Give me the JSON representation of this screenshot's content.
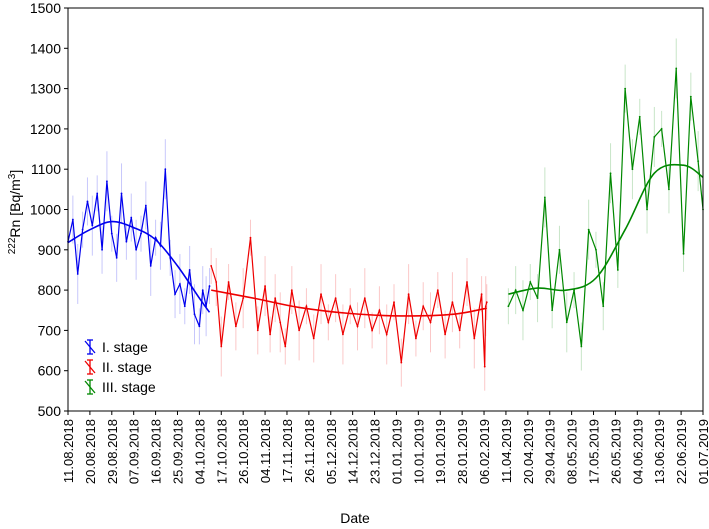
{
  "chart_data": {
    "type": "line",
    "xlabel": "Date",
    "ylabel_prefix": "222",
    "ylabel_main": "Rn [Bq/m",
    "ylabel_sup": "3",
    "ylabel_suffix": "]",
    "ylim": [
      500,
      1500
    ],
    "yticks": [
      500,
      600,
      700,
      800,
      900,
      1000,
      1100,
      1200,
      1300,
      1400,
      1500
    ],
    "xlim": [
      "2018-08-11",
      "2019-07-01"
    ],
    "xticks": [
      "11.08.2018",
      "20.08.2018",
      "29.08.2018",
      "07.09.2018",
      "16.09.2018",
      "25.09.2018",
      "04.10.2018",
      "17.10.2018",
      "26.10.2018",
      "04.11.2018",
      "17.11.2018",
      "26.11.2018",
      "05.12.2018",
      "14.12.2018",
      "23.12.2018",
      "01.01.2019",
      "10.01.2019",
      "19.01.2019",
      "28.01.2019",
      "06.02.2019",
      "11.04.2019",
      "20.04.2019",
      "29.04.2019",
      "08.05.2019",
      "17.05.2019",
      "26.05.2019",
      "04.06.2019",
      "13.06.2019",
      "22.06.2019",
      "01.07.2019"
    ],
    "grid": false,
    "legend_position": "bottom-left",
    "series": [
      {
        "name": "I. stage",
        "color": "#0000ee",
        "x": [
          "2018-08-11",
          "2018-08-13",
          "2018-08-15",
          "2018-08-17",
          "2018-08-19",
          "2018-08-21",
          "2018-08-23",
          "2018-08-25",
          "2018-08-27",
          "2018-08-29",
          "2018-08-31",
          "2018-09-02",
          "2018-09-04",
          "2018-09-06",
          "2018-09-08",
          "2018-09-10",
          "2018-09-12",
          "2018-09-14",
          "2018-09-16",
          "2018-09-18",
          "2018-09-20",
          "2018-09-22",
          "2018-09-24",
          "2018-09-26",
          "2018-09-28",
          "2018-09-30",
          "2018-10-02",
          "2018-10-04",
          "2018-10-06",
          "2018-10-08",
          "2018-10-10"
        ],
        "values": [
          920,
          975,
          840,
          950,
          1020,
          960,
          1040,
          900,
          1070,
          940,
          880,
          1040,
          920,
          980,
          900,
          940,
          1010,
          860,
          930,
          910,
          1100,
          880,
          790,
          815,
          760,
          850,
          740,
          710,
          800,
          760,
          810
        ],
        "trend_x": [
          "2018-08-11",
          "2018-08-20",
          "2018-08-29",
          "2018-09-07",
          "2018-09-16",
          "2018-09-25",
          "2018-10-04",
          "2018-10-10"
        ],
        "trend": [
          918,
          950,
          970,
          955,
          925,
          860,
          780,
          745
        ]
      },
      {
        "name": "II. stage",
        "color": "#ee0000",
        "x": [
          "2018-10-11",
          "2018-10-14",
          "2018-10-17",
          "2018-10-20",
          "2018-10-23",
          "2018-10-26",
          "2018-10-29",
          "2018-11-01",
          "2018-11-04",
          "2018-11-07",
          "2018-11-10",
          "2018-11-13",
          "2018-11-16",
          "2018-11-19",
          "2018-11-22",
          "2018-11-25",
          "2018-11-28",
          "2018-12-01",
          "2018-12-04",
          "2018-12-07",
          "2018-12-10",
          "2018-12-13",
          "2018-12-16",
          "2018-12-19",
          "2018-12-22",
          "2018-12-25",
          "2018-12-28",
          "2018-12-31",
          "2019-01-03",
          "2019-01-06",
          "2019-01-09",
          "2019-01-12",
          "2019-01-15",
          "2019-01-18",
          "2019-01-21",
          "2019-01-24",
          "2019-01-27",
          "2019-01-30",
          "2019-02-02",
          "2019-02-05",
          "2019-02-08",
          "2019-02-11",
          "2019-02-14"
        ],
        "values": [
          860,
          820,
          660,
          820,
          710,
          780,
          930,
          700,
          810,
          690,
          780,
          720,
          660,
          800,
          700,
          760,
          680,
          790,
          720,
          780,
          690,
          760,
          710,
          780,
          700,
          750,
          690,
          770,
          620,
          790,
          680,
          760,
          720,
          800,
          690,
          770,
          700,
          820,
          680,
          790,
          610,
          760,
          770
        ],
        "trend_x": [
          "2018-10-11",
          "2018-11-01",
          "2018-11-22",
          "2018-12-13",
          "2019-01-03",
          "2019-01-24",
          "2019-02-14"
        ],
        "trend": [
          800,
          778,
          757,
          742,
          736,
          740,
          755
        ]
      },
      {
        "name": "III. stage",
        "color": "#008800",
        "x": [
          "2019-04-12",
          "2019-04-15",
          "2019-04-18",
          "2019-04-21",
          "2019-04-24",
          "2019-04-27",
          "2019-04-30",
          "2019-05-03",
          "2019-05-06",
          "2019-05-09",
          "2019-05-12",
          "2019-05-15",
          "2019-05-18",
          "2019-05-21",
          "2019-05-24",
          "2019-05-27",
          "2019-05-30",
          "2019-06-02",
          "2019-06-05",
          "2019-06-08",
          "2019-06-11",
          "2019-06-14",
          "2019-06-17",
          "2019-06-20",
          "2019-06-23",
          "2019-06-26",
          "2019-06-29",
          "2019-07-01"
        ],
        "values": [
          760,
          800,
          750,
          820,
          780,
          1030,
          750,
          900,
          720,
          800,
          660,
          950,
          900,
          760,
          1090,
          850,
          1300,
          1100,
          1230,
          1000,
          1180,
          1200,
          1050,
          1350,
          890,
          1280,
          1120,
          1000
        ],
        "trend_x": [
          "2019-04-12",
          "2019-04-24",
          "2019-05-06",
          "2019-05-18",
          "2019-05-30",
          "2019-06-11",
          "2019-06-23",
          "2019-07-01"
        ],
        "trend": [
          790,
          805,
          800,
          830,
          950,
          1090,
          1110,
          1080
        ]
      }
    ]
  }
}
